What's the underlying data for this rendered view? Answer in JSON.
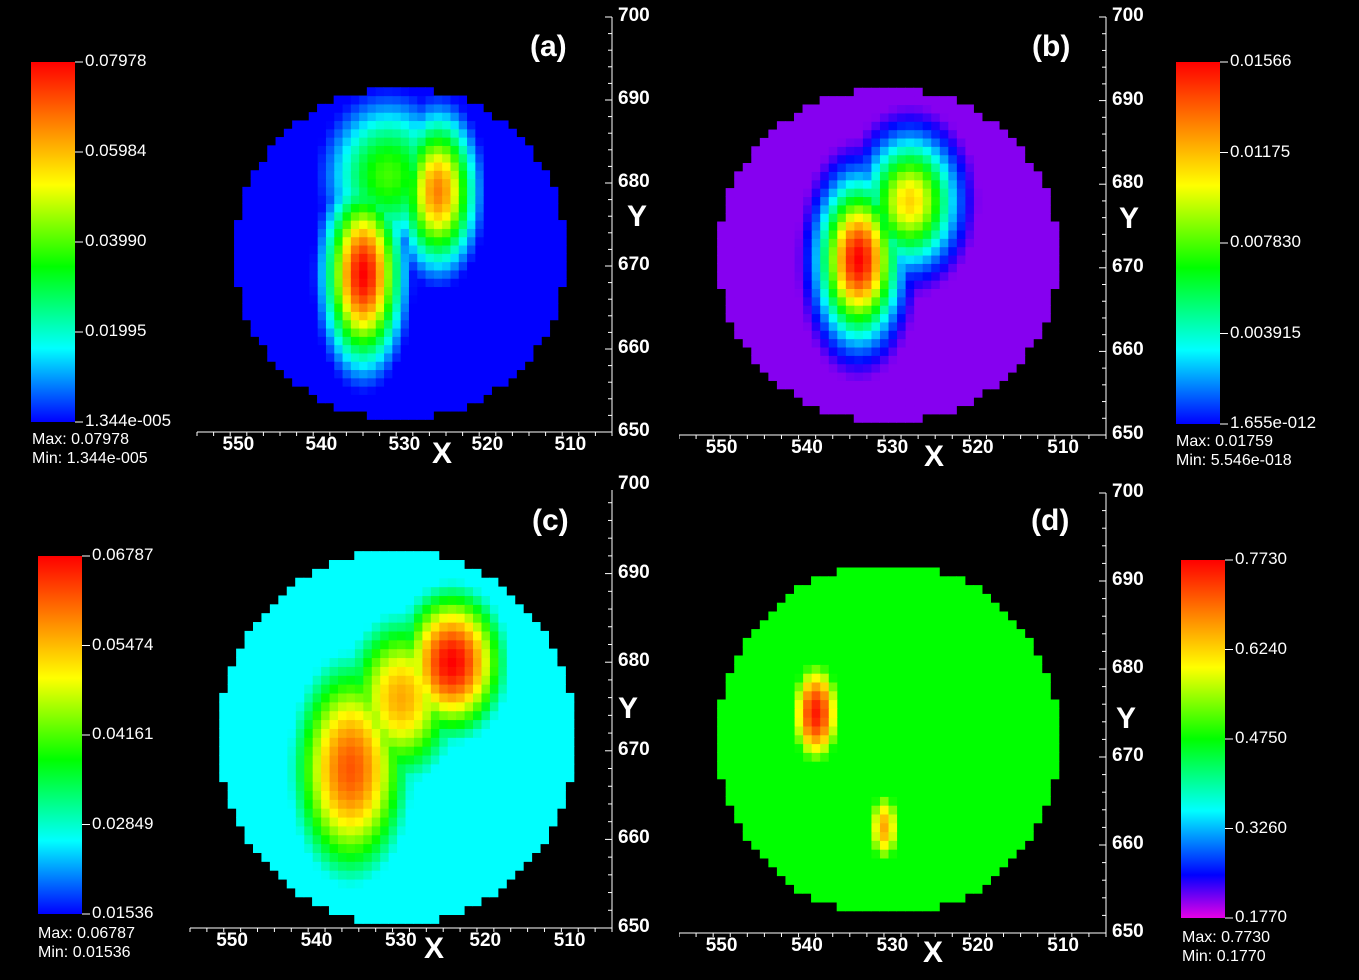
{
  "colors": {
    "background": "#000000",
    "text": "#ffffff"
  },
  "chart_data": [
    {
      "type": "heatmap",
      "panel_label": "(a)",
      "xlabel": "X",
      "ylabel": "Y",
      "xticks": [
        "550",
        "540",
        "530",
        "520",
        "510"
      ],
      "yticks": [
        "700",
        "690",
        "680",
        "670",
        "660",
        "650"
      ],
      "xlim": [
        555,
        505
      ],
      "ylim": [
        650,
        700
      ],
      "colorscale": "rainbow",
      "colorbar_ticks": [
        "0.07978",
        "0.05984",
        "0.03990",
        "0.01995",
        "1.344e-005"
      ],
      "stats": {
        "max_label": "Max:",
        "max": "0.07978",
        "min_label": "Min:",
        "min": "1.344e-005"
      },
      "domain": {
        "center_x": 530.5,
        "center_y": 671.5,
        "radius": 20
      },
      "field": {
        "base": 0.12,
        "hotspots": [
          {
            "x": 535,
            "y": 669,
            "value": 1.0,
            "sx": 3.0,
            "sy": 7
          },
          {
            "x": 526,
            "y": 679,
            "value": 0.85,
            "sx": 3.0,
            "sy": 6
          },
          {
            "x": 532,
            "y": 681,
            "value": 0.55,
            "sx": 5.0,
            "sy": 6
          }
        ]
      }
    },
    {
      "type": "heatmap",
      "panel_label": "(b)",
      "xlabel": "X",
      "ylabel": "Y",
      "xticks": [
        "550",
        "540",
        "530",
        "520",
        "510"
      ],
      "yticks": [
        "700",
        "690",
        "680",
        "670",
        "660",
        "650"
      ],
      "xlim": [
        555,
        505
      ],
      "ylim": [
        650,
        700
      ],
      "colorscale": "rainbow",
      "colorbar_ticks": [
        "0.01566",
        "0.01175",
        "0.007830",
        "0.003915",
        "1.655e-012"
      ],
      "stats": {
        "max_label": "Max:",
        "max": "0.01759",
        "min_label": "Min:",
        "min": "5.546e-018"
      },
      "domain": {
        "center_x": 530.5,
        "center_y": 671.5,
        "radius": 20
      },
      "field": {
        "base": 0.05,
        "hotspots": [
          {
            "x": 534,
            "y": 671,
            "value": 1.0,
            "sx": 3.0,
            "sy": 6
          },
          {
            "x": 528,
            "y": 678,
            "value": 0.75,
            "sx": 3.5,
            "sy": 5
          }
        ]
      }
    },
    {
      "type": "heatmap",
      "panel_label": "(c)",
      "xlabel": "X",
      "ylabel": "Y",
      "xticks": [
        "550",
        "540",
        "530",
        "520",
        "510"
      ],
      "yticks": [
        "700",
        "690",
        "680",
        "670",
        "660",
        "650"
      ],
      "xlim": [
        555,
        505
      ],
      "ylim": [
        650,
        700
      ],
      "colorscale": "rainbow",
      "colorbar_ticks": [
        "0.06787",
        "0.05474",
        "0.04161",
        "0.02849",
        "0.01536"
      ],
      "stats": {
        "max_label": "Max:",
        "max": "0.06787",
        "min_label": "Min:",
        "min": "0.01536"
      },
      "domain": {
        "center_x": 530.5,
        "center_y": 671.5,
        "radius": 21
      },
      "field": {
        "base": 0.3,
        "hotspots": [
          {
            "x": 536,
            "y": 668,
            "value": 0.9,
            "sx": 5.0,
            "sy": 9
          },
          {
            "x": 524,
            "y": 680,
            "value": 1.0,
            "sx": 4.5,
            "sy": 6
          },
          {
            "x": 530,
            "y": 676,
            "value": 0.8,
            "sx": 5.0,
            "sy": 7
          }
        ]
      }
    },
    {
      "type": "heatmap",
      "panel_label": "(d)",
      "xlabel": "X",
      "ylabel": "Y",
      "xticks": [
        "550",
        "540",
        "530",
        "520",
        "510"
      ],
      "yticks": [
        "700",
        "690",
        "680",
        "670",
        "660",
        "650"
      ],
      "xlim": [
        555,
        505
      ],
      "ylim": [
        650,
        700
      ],
      "colorscale": "rainbow",
      "colorbar_ticks": [
        "0.7730",
        "0.6240",
        "0.4750",
        "0.3260",
        "0.1770"
      ],
      "stats": {
        "max_label": "Max:",
        "max": "0.7730",
        "min_label": "Min:",
        "min": "0.1770"
      },
      "domain": {
        "center_x": 530.5,
        "center_y": 672,
        "radius": 20
      },
      "field": {
        "base": 0.5,
        "hotspots": [
          {
            "x": 539,
            "y": 675,
            "value": 0.97,
            "sx": 2.5,
            "sy": 5
          },
          {
            "x": 531,
            "y": 662,
            "value": 0.8,
            "sx": 1.8,
            "sy": 4
          },
          {
            "x": 512,
            "y": 660,
            "value": 0.15,
            "sx": 2.5,
            "sy": 3
          }
        ]
      }
    }
  ]
}
